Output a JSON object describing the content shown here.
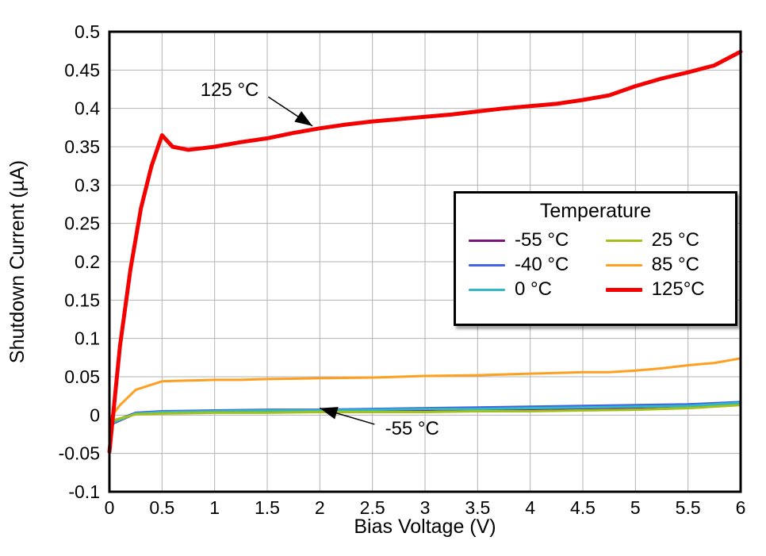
{
  "chart_data": {
    "type": "line",
    "title": "",
    "xlabel": "Bias Voltage (V)",
    "ylabel": "Shutdown Current (µA)",
    "xlim": [
      0,
      6
    ],
    "ylim": [
      -0.1,
      0.5
    ],
    "xticks": [
      "0",
      "0.5",
      "1",
      "1.5",
      "2",
      "2.5",
      "3",
      "3.5",
      "4",
      "4.5",
      "5",
      "5.5",
      "6"
    ],
    "yticks": [
      "-0.1",
      "-0.05",
      "0",
      "0.05",
      "0.1",
      "0.15",
      "0.2",
      "0.25",
      "0.3",
      "0.35",
      "0.4",
      "0.45",
      "0.5"
    ],
    "grid": true,
    "grid_color": "#b3b3b3",
    "border_color": "#000000",
    "legend_title": "Temperature",
    "legend_position": "inside-right",
    "series": [
      {
        "name": "minus55C",
        "label": "-55 °C",
        "color": "#7c1577",
        "width": 3,
        "points": [
          [
            0,
            -0.013
          ],
          [
            0.25,
            0.002
          ],
          [
            0.5,
            0.004
          ],
          [
            0.75,
            0.005
          ],
          [
            1,
            0.005
          ],
          [
            1.5,
            0.005
          ],
          [
            2,
            0.006
          ],
          [
            2.5,
            0.006
          ],
          [
            3,
            0.007
          ],
          [
            3.5,
            0.008
          ],
          [
            4,
            0.008
          ],
          [
            4.5,
            0.009
          ],
          [
            5,
            0.01
          ],
          [
            5.5,
            0.012
          ],
          [
            6,
            0.014
          ]
        ]
      },
      {
        "name": "minus40C",
        "label": "-40 °C",
        "color": "#4263e3",
        "width": 3,
        "points": [
          [
            0,
            -0.01
          ],
          [
            0.25,
            0.003
          ],
          [
            0.5,
            0.005
          ],
          [
            1,
            0.006
          ],
          [
            1.5,
            0.007
          ],
          [
            2,
            0.007
          ],
          [
            2.5,
            0.008
          ],
          [
            3,
            0.009
          ],
          [
            3.5,
            0.01
          ],
          [
            4,
            0.011
          ],
          [
            4.5,
            0.012
          ],
          [
            5,
            0.013
          ],
          [
            5.5,
            0.014
          ],
          [
            6,
            0.017
          ]
        ]
      },
      {
        "name": "0C",
        "label": "0 °C",
        "color": "#31b8c4",
        "width": 3,
        "points": [
          [
            0,
            -0.012
          ],
          [
            0.25,
            0.002
          ],
          [
            0.5,
            0.004
          ],
          [
            1,
            0.005
          ],
          [
            1.5,
            0.006
          ],
          [
            2,
            0.006
          ],
          [
            2.5,
            0.007
          ],
          [
            3,
            0.008
          ],
          [
            3.5,
            0.008
          ],
          [
            4,
            0.009
          ],
          [
            4.5,
            0.01
          ],
          [
            5,
            0.011
          ],
          [
            5.5,
            0.012
          ],
          [
            6,
            0.016
          ]
        ]
      },
      {
        "name": "25C",
        "label": "25 °C",
        "color": "#a3c219",
        "width": 3,
        "points": [
          [
            0,
            -0.008
          ],
          [
            0.25,
            0.001
          ],
          [
            0.5,
            0.002
          ],
          [
            1,
            0.003
          ],
          [
            1.5,
            0.003
          ],
          [
            2,
            0.004
          ],
          [
            2.5,
            0.004
          ],
          [
            3,
            0.004
          ],
          [
            3.5,
            0.005
          ],
          [
            4,
            0.005
          ],
          [
            4.5,
            0.006
          ],
          [
            5,
            0.007
          ],
          [
            5.5,
            0.009
          ],
          [
            6,
            0.013
          ]
        ]
      },
      {
        "name": "85C",
        "label": "85 °C",
        "color": "#ff9f1f",
        "width": 3,
        "points": [
          [
            0,
            -0.005
          ],
          [
            0.1,
            0.013
          ],
          [
            0.25,
            0.033
          ],
          [
            0.5,
            0.044
          ],
          [
            0.75,
            0.045
          ],
          [
            1,
            0.046
          ],
          [
            1.25,
            0.046
          ],
          [
            1.5,
            0.047
          ],
          [
            2,
            0.048
          ],
          [
            2.5,
            0.049
          ],
          [
            3,
            0.051
          ],
          [
            3.5,
            0.052
          ],
          [
            4,
            0.054
          ],
          [
            4.25,
            0.055
          ],
          [
            4.5,
            0.056
          ],
          [
            4.75,
            0.056
          ],
          [
            5,
            0.058
          ],
          [
            5.25,
            0.061
          ],
          [
            5.5,
            0.065
          ],
          [
            5.75,
            0.068
          ],
          [
            6,
            0.074
          ]
        ]
      },
      {
        "name": "125C",
        "label": "125°C",
        "color": "#f40000",
        "width": 5,
        "points": [
          [
            0,
            -0.048
          ],
          [
            0.1,
            0.09
          ],
          [
            0.2,
            0.19
          ],
          [
            0.3,
            0.27
          ],
          [
            0.4,
            0.325
          ],
          [
            0.5,
            0.365
          ],
          [
            0.6,
            0.35
          ],
          [
            0.75,
            0.346
          ],
          [
            1,
            0.35
          ],
          [
            1.25,
            0.356
          ],
          [
            1.5,
            0.361
          ],
          [
            1.75,
            0.368
          ],
          [
            2,
            0.374
          ],
          [
            2.25,
            0.379
          ],
          [
            2.5,
            0.383
          ],
          [
            2.75,
            0.386
          ],
          [
            3,
            0.389
          ],
          [
            3.25,
            0.392
          ],
          [
            3.5,
            0.396
          ],
          [
            3.75,
            0.4
          ],
          [
            4,
            0.403
          ],
          [
            4.25,
            0.406
          ],
          [
            4.5,
            0.411
          ],
          [
            4.75,
            0.417
          ],
          [
            5,
            0.429
          ],
          [
            5.25,
            0.439
          ],
          [
            5.5,
            0.447
          ],
          [
            5.75,
            0.456
          ],
          [
            6,
            0.474
          ]
        ]
      }
    ],
    "annotations": [
      {
        "text": "125 °C",
        "text_at": [
          1.42,
          0.424
        ],
        "anchor": "end",
        "line": [
          [
            1.51,
            0.415
          ],
          [
            1.93,
            0.377
          ]
        ]
      },
      {
        "text": "-55 °C",
        "text_at": [
          2.62,
          -0.018
        ],
        "anchor": "start",
        "line": [
          [
            2.52,
            -0.012
          ],
          [
            2.0,
            0.009
          ]
        ]
      }
    ]
  }
}
